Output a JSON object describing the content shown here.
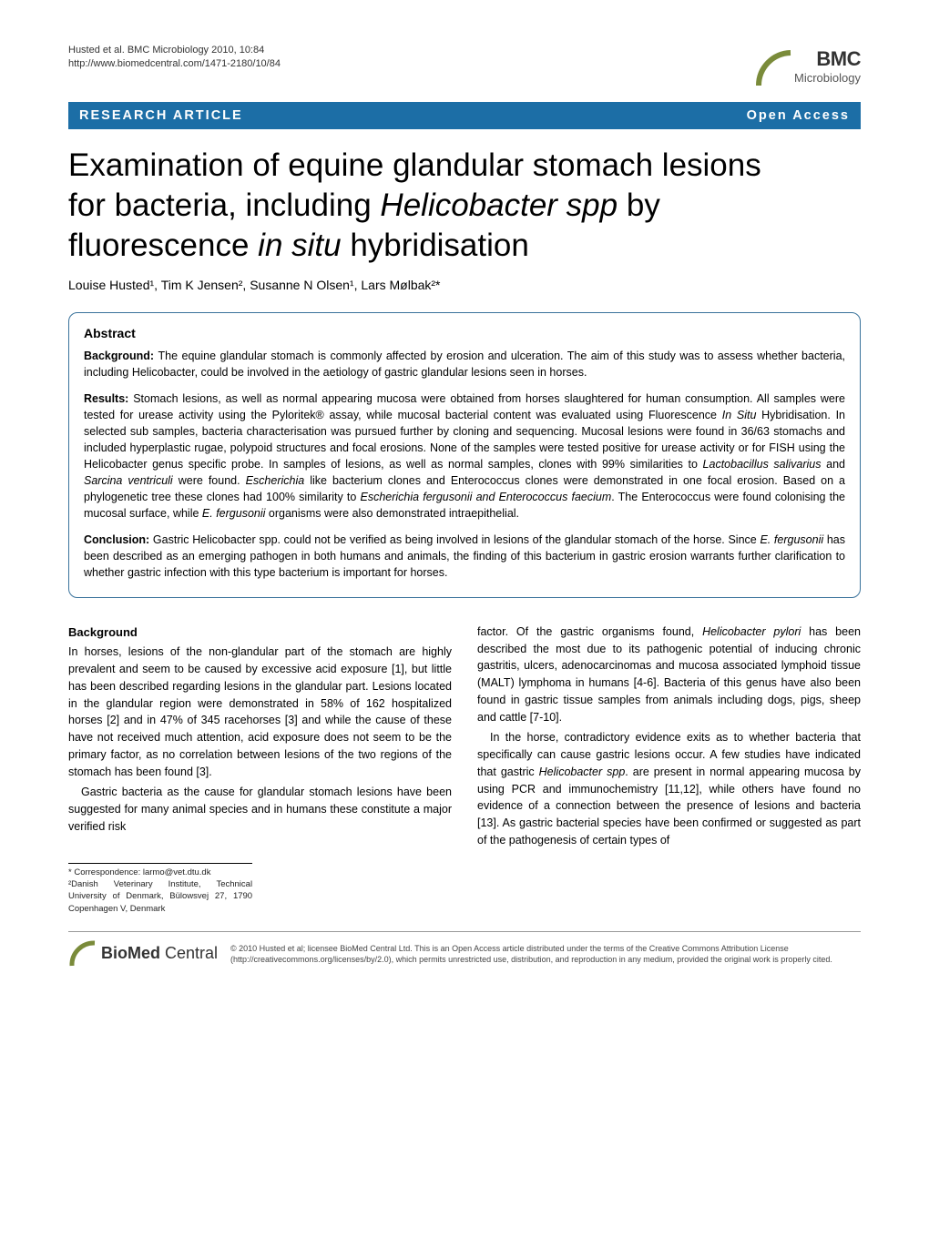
{
  "header": {
    "citation_line1": "Husted et al. BMC Microbiology 2010, 10:84",
    "citation_line2": "http://www.biomedcentral.com/1471-2180/10/84",
    "logo_top": "BMC",
    "logo_bottom": "Microbiology"
  },
  "banner": {
    "left": "RESEARCH ARTICLE",
    "right": "Open Access"
  },
  "title": {
    "line1": "Examination of equine glandular stomach lesions",
    "line2a": "for bacteria, including ",
    "line2b": "Helicobacter spp",
    "line2c": " by",
    "line3a": "fluorescence ",
    "line3b": "in situ",
    "line3c": " hybridisation"
  },
  "authors": {
    "text": "Louise Husted¹, Tim K Jensen², Susanne N Olsen¹, Lars Mølbak²*"
  },
  "abstract": {
    "heading": "Abstract",
    "background": {
      "label": "Background: ",
      "text": "The equine glandular stomach is commonly affected by erosion and ulceration. The aim of this study was to assess whether bacteria, including Helicobacter, could be involved in the aetiology of gastric glandular lesions seen in horses."
    },
    "results": {
      "label": "Results: ",
      "text_parts": [
        {
          "t": "Stomach lesions, as well as normal appearing mucosa were obtained from horses slaughtered for human consumption. All samples were tested for urease activity using the Pyloritek® assay, while mucosal bacterial content was evaluated using Fluorescence ",
          "i": false
        },
        {
          "t": "In Situ",
          "i": true
        },
        {
          "t": " Hybridisation. In selected sub samples, bacteria characterisation was pursued further by cloning and sequencing. Mucosal lesions were found in 36/63 stomachs and included hyperplastic rugae, polypoid structures and focal erosions. None of the samples were tested positive for urease activity or for FISH using the Helicobacter genus specific probe. In samples of lesions, as well as normal samples, clones with 99% similarities to ",
          "i": false
        },
        {
          "t": "Lactobacillus salivarius",
          "i": true
        },
        {
          "t": " and ",
          "i": false
        },
        {
          "t": "Sarcina ventriculi",
          "i": true
        },
        {
          "t": " were found. ",
          "i": false
        },
        {
          "t": "Escherichia",
          "i": true
        },
        {
          "t": " like bacterium clones and Enterococcus clones were demonstrated in one focal erosion. Based on a phylogenetic tree these clones had 100% similarity to ",
          "i": false
        },
        {
          "t": "Escherichia fergusonii and Enterococcus faecium",
          "i": true
        },
        {
          "t": ". The Enterococcus were found colonising the mucosal surface, while ",
          "i": false
        },
        {
          "t": "E. fergusonii",
          "i": true
        },
        {
          "t": " organisms were also demonstrated intraepithelial.",
          "i": false
        }
      ]
    },
    "conclusion": {
      "label": "Conclusion: ",
      "text_parts": [
        {
          "t": "Gastric Helicobacter spp. could not be verified as being involved in lesions of the glandular stomach of the horse. Since ",
          "i": false
        },
        {
          "t": "E. fergusonii",
          "i": true
        },
        {
          "t": " has been described as an emerging pathogen in both humans and animals, the finding of this bacterium in gastric erosion warrants further clarification to whether gastric infection with this type bacterium is important for horses.",
          "i": false
        }
      ]
    }
  },
  "body": {
    "heading": "Background",
    "left_col": {
      "p1": "In horses, lesions of the non-glandular part of the stomach are highly prevalent and seem to be caused by excessive acid exposure [1], but little has been described regarding lesions in the glandular part. Lesions located in the glandular region were demonstrated in 58% of 162 hospitalized horses [2] and in 47% of 345 racehorses [3] and while the cause of these have not received much attention, acid exposure does not seem to be the primary factor, as no correlation between lesions of the two regions of the stomach has been found [3].",
      "p2": "Gastric bacteria as the cause for glandular stomach lesions have been suggested for many animal species and in humans these constitute a major verified risk"
    },
    "right_col": {
      "p1_parts": [
        {
          "t": "factor. Of the gastric organisms found, ",
          "i": false
        },
        {
          "t": "Helicobacter pylori",
          "i": true
        },
        {
          "t": " has been described the most due to its pathogenic potential of inducing chronic gastritis, ulcers, adenocarcinomas and mucosa associated lymphoid tissue (MALT) lymphoma in humans [4-6]. Bacteria of this genus have also been found in gastric tissue samples from animals including dogs, pigs, sheep and cattle [7-10].",
          "i": false
        }
      ],
      "p2_parts": [
        {
          "t": "In the horse, contradictory evidence exits as to whether bacteria that specifically can cause gastric lesions occur. A few studies have indicated that gastric ",
          "i": false
        },
        {
          "t": "Helicobacter spp",
          "i": true
        },
        {
          "t": ". are present in normal appearing mucosa by using PCR and immunochemistry [11,12], while others have found no evidence of a connection between the presence of lesions and bacteria [13]. As gastric bacterial species have been confirmed or suggested as part of the pathogenesis of certain types of",
          "i": false
        }
      ]
    }
  },
  "footer": {
    "correspondence": {
      "line1": "* Correspondence: larmo@vet.dtu.dk",
      "line2": "²Danish Veterinary Institute, Technical University of Denmark, Bülowsvej 27, 1790 Copenhagen V, Denmark"
    },
    "biomed_logo": {
      "bold": "BioMed",
      "light": " Central"
    },
    "license": "© 2010 Husted et al; licensee BioMed Central Ltd. This is an Open Access article distributed under the terms of the Creative Commons Attribution License (http://creativecommons.org/licenses/by/2.0), which permits unrestricted use, distribution, and reproduction in any medium, provided the original work is properly cited."
  },
  "colors": {
    "banner_bg": "#1c6ea6",
    "banner_text": "#ffffff",
    "border": "#39729b"
  }
}
